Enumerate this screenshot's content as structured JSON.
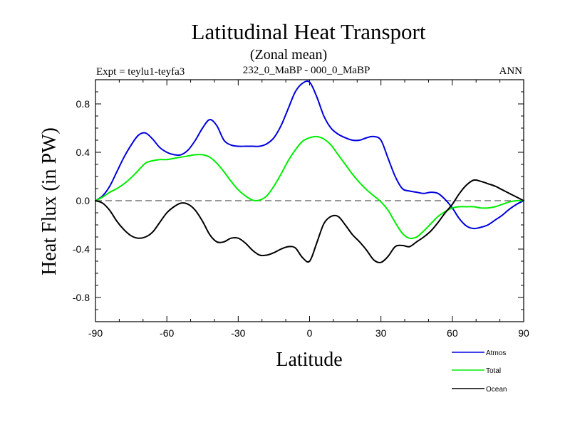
{
  "chart_data": {
    "type": "line",
    "title": "Latitudinal Heat Transport",
    "subtitle": "(Zonal mean)",
    "left_label": "Expt = teylu1-teyfa3",
    "center_label": "232_0_MaBP - 000_0_MaBP",
    "right_label": "ANN",
    "xlabel": "Latitude",
    "ylabel": "Heat Flux (in PW)",
    "xlim": [
      -90,
      90
    ],
    "ylim": [
      -1.0,
      1.0
    ],
    "xticks": [
      -90,
      -60,
      -30,
      0,
      30,
      60,
      90
    ],
    "xtick_labels": [
      "-90",
      "-60",
      "-30",
      "0",
      "30",
      "60",
      "90"
    ],
    "yticks": [
      -0.8,
      -0.4,
      0.0,
      0.4,
      0.8
    ],
    "ytick_labels": [
      "-0.8",
      "-0.4",
      "0.0",
      "0.4",
      "0.8"
    ],
    "zero_line": "dashed",
    "legend_position": "bottom-right",
    "series": [
      {
        "name": "Atmos",
        "color": "#0000dd",
        "x": [
          -90,
          -87,
          -84,
          -81,
          -78,
          -75,
          -72,
          -69,
          -66,
          -63,
          -60,
          -57,
          -54,
          -51,
          -48,
          -45,
          -42,
          -39,
          -36,
          -33,
          -30,
          -27,
          -24,
          -21,
          -18,
          -15,
          -12,
          -9,
          -6,
          -3,
          0,
          3,
          6,
          9,
          12,
          15,
          18,
          21,
          24,
          27,
          30,
          33,
          36,
          39,
          42,
          45,
          48,
          51,
          54,
          57,
          60,
          63,
          66,
          69,
          72,
          75,
          78,
          81,
          84,
          87,
          90
        ],
        "y": [
          0,
          0.04,
          0.12,
          0.24,
          0.36,
          0.46,
          0.54,
          0.56,
          0.51,
          0.44,
          0.4,
          0.38,
          0.38,
          0.42,
          0.5,
          0.6,
          0.67,
          0.62,
          0.5,
          0.46,
          0.45,
          0.45,
          0.45,
          0.45,
          0.47,
          0.52,
          0.62,
          0.76,
          0.9,
          0.97,
          0.98,
          0.86,
          0.7,
          0.6,
          0.55,
          0.52,
          0.5,
          0.5,
          0.52,
          0.53,
          0.5,
          0.35,
          0.2,
          0.1,
          0.08,
          0.07,
          0.06,
          0.07,
          0.06,
          0.01,
          -0.06,
          -0.15,
          -0.21,
          -0.23,
          -0.22,
          -0.2,
          -0.16,
          -0.12,
          -0.07,
          -0.03,
          0
        ]
      },
      {
        "name": "Total",
        "color": "#00ee00",
        "x": [
          -90,
          -87,
          -84,
          -81,
          -78,
          -75,
          -72,
          -69,
          -66,
          -63,
          -60,
          -57,
          -54,
          -51,
          -48,
          -45,
          -42,
          -39,
          -36,
          -33,
          -30,
          -27,
          -24,
          -21,
          -18,
          -15,
          -12,
          -9,
          -6,
          -3,
          0,
          3,
          6,
          9,
          12,
          15,
          18,
          21,
          24,
          27,
          30,
          33,
          36,
          39,
          42,
          45,
          48,
          51,
          54,
          57,
          60,
          63,
          66,
          69,
          72,
          75,
          78,
          81,
          84,
          87,
          90
        ],
        "y": [
          0,
          0.03,
          0.07,
          0.1,
          0.14,
          0.19,
          0.25,
          0.31,
          0.33,
          0.34,
          0.34,
          0.35,
          0.36,
          0.37,
          0.38,
          0.38,
          0.36,
          0.31,
          0.24,
          0.16,
          0.09,
          0.04,
          0.005,
          0.005,
          0.04,
          0.12,
          0.22,
          0.33,
          0.42,
          0.49,
          0.52,
          0.53,
          0.51,
          0.46,
          0.38,
          0.3,
          0.22,
          0.15,
          0.09,
          0.04,
          -0.01,
          -0.08,
          -0.18,
          -0.27,
          -0.31,
          -0.3,
          -0.25,
          -0.19,
          -0.13,
          -0.09,
          -0.06,
          -0.05,
          -0.05,
          -0.05,
          -0.06,
          -0.06,
          -0.05,
          -0.03,
          -0.01,
          0.0,
          0
        ]
      },
      {
        "name": "Ocean",
        "color": "#000000",
        "x": [
          -90,
          -87,
          -84,
          -81,
          -78,
          -75,
          -72,
          -69,
          -66,
          -63,
          -60,
          -57,
          -54,
          -51,
          -48,
          -45,
          -42,
          -39,
          -36,
          -33,
          -30,
          -27,
          -24,
          -21,
          -18,
          -15,
          -12,
          -9,
          -6,
          -3,
          0,
          3,
          6,
          9,
          12,
          15,
          18,
          21,
          24,
          27,
          30,
          33,
          36,
          39,
          42,
          45,
          48,
          51,
          54,
          57,
          60,
          63,
          66,
          69,
          72,
          75,
          78,
          81,
          84,
          87,
          90
        ],
        "y": [
          0,
          -0.02,
          -0.08,
          -0.17,
          -0.24,
          -0.29,
          -0.31,
          -0.3,
          -0.26,
          -0.18,
          -0.1,
          -0.05,
          -0.02,
          -0.03,
          -0.08,
          -0.17,
          -0.28,
          -0.34,
          -0.34,
          -0.31,
          -0.31,
          -0.35,
          -0.41,
          -0.45,
          -0.45,
          -0.43,
          -0.4,
          -0.38,
          -0.39,
          -0.47,
          -0.5,
          -0.35,
          -0.19,
          -0.13,
          -0.13,
          -0.2,
          -0.28,
          -0.34,
          -0.41,
          -0.49,
          -0.51,
          -0.46,
          -0.38,
          -0.37,
          -0.38,
          -0.34,
          -0.3,
          -0.25,
          -0.18,
          -0.1,
          -0.03,
          0.06,
          0.13,
          0.17,
          0.16,
          0.14,
          0.12,
          0.09,
          0.06,
          0.03,
          0
        ]
      }
    ]
  }
}
